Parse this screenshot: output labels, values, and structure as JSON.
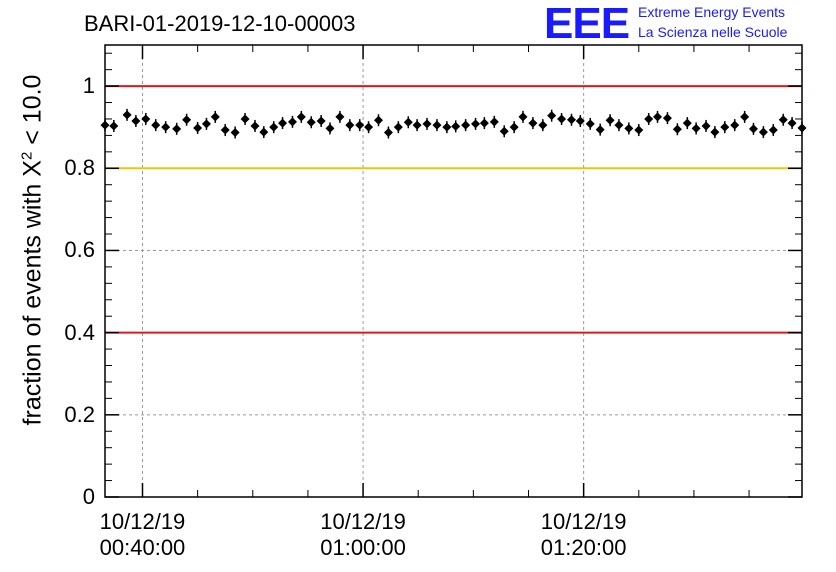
{
  "chart_data": {
    "type": "scatter",
    "title": "BARI-01-2019-12-10-00003",
    "ylabel_text": "fraction of events with X",
    "ylabel_sup": "2",
    "ylabel_suffix": " < 10.0",
    "xlabel": "",
    "ylim": [
      0,
      1.1
    ],
    "yticks": [
      0,
      0.2,
      0.4,
      0.6,
      0.8,
      1
    ],
    "ytick_labels": [
      "0",
      "0.2",
      "0.4",
      "0.6",
      "0.8",
      "1"
    ],
    "xlim_minutes": [
      36.6,
      99.8
    ],
    "xticks_minutes": [
      40,
      60,
      80
    ],
    "xtick_labels": [
      {
        "date": "10/12/19",
        "time": "00:40:00"
      },
      {
        "date": "10/12/19",
        "time": "01:00:00"
      },
      {
        "date": "10/12/19",
        "time": "01:20:00"
      }
    ],
    "reference_lines": [
      {
        "y": 1.0,
        "color": "#e8141a"
      },
      {
        "y": 0.8,
        "color": "#f5c400"
      },
      {
        "y": 0.4,
        "color": "#e8141a"
      }
    ],
    "grid": true,
    "series": [
      {
        "name": "fraction",
        "x": [
          36.6,
          37.4,
          38.6,
          39.4,
          40.3,
          41.2,
          42.1,
          43.1,
          44.0,
          45.0,
          45.8,
          46.6,
          47.5,
          48.4,
          49.3,
          50.2,
          51.0,
          51.9,
          52.7,
          53.6,
          54.4,
          55.3,
          56.2,
          57.0,
          57.9,
          58.8,
          59.7,
          60.5,
          61.4,
          62.3,
          63.2,
          64.1,
          64.9,
          65.8,
          66.7,
          67.6,
          68.4,
          69.3,
          70.2,
          71.0,
          71.9,
          72.8,
          73.7,
          74.5,
          75.4,
          76.3,
          77.1,
          78.0,
          78.9,
          79.7,
          80.6,
          81.5,
          82.4,
          83.2,
          84.1,
          85.0,
          85.9,
          86.7,
          87.6,
          88.5,
          89.4,
          90.2,
          91.1,
          91.9,
          92.8,
          93.7,
          94.6,
          95.4,
          96.3,
          97.2,
          98.1,
          98.9,
          99.8
        ],
        "y": [
          0.905,
          0.903,
          0.93,
          0.915,
          0.92,
          0.905,
          0.9,
          0.896,
          0.918,
          0.898,
          0.908,
          0.925,
          0.893,
          0.887,
          0.92,
          0.903,
          0.888,
          0.9,
          0.91,
          0.913,
          0.925,
          0.912,
          0.915,
          0.897,
          0.925,
          0.905,
          0.905,
          0.9,
          0.917,
          0.887,
          0.9,
          0.912,
          0.905,
          0.908,
          0.905,
          0.9,
          0.902,
          0.905,
          0.908,
          0.91,
          0.913,
          0.89,
          0.9,
          0.925,
          0.91,
          0.905,
          0.928,
          0.92,
          0.918,
          0.915,
          0.908,
          0.894,
          0.917,
          0.905,
          0.897,
          0.893,
          0.92,
          0.925,
          0.922,
          0.895,
          0.91,
          0.897,
          0.903,
          0.888,
          0.9,
          0.905,
          0.925,
          0.896,
          0.888,
          0.893,
          0.918,
          0.91,
          0.898
        ]
      }
    ]
  },
  "logo": {
    "mark": "EEE",
    "line1": "Extreme Energy Events",
    "line2": "La Scienza nelle Scuole",
    "color": "#1a1aff"
  }
}
